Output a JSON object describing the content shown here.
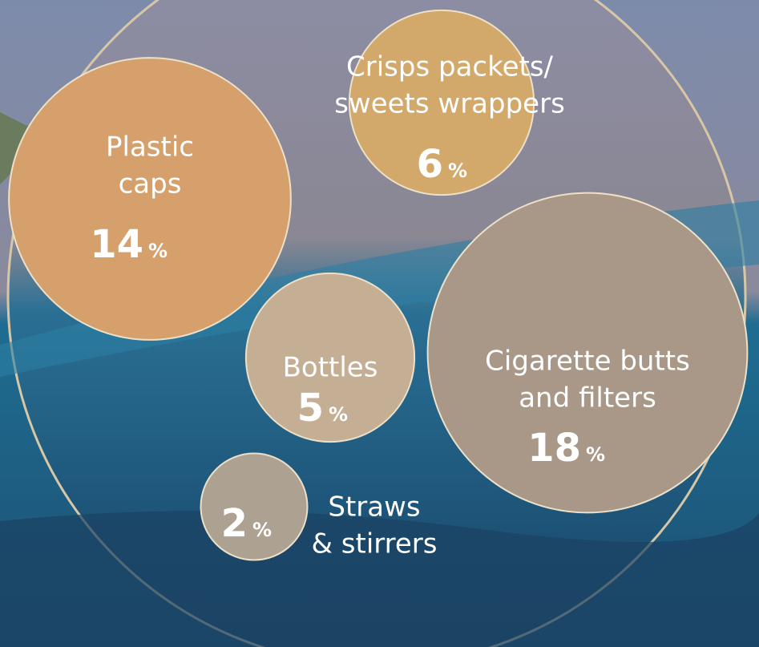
{
  "chart_data": {
    "type": "bubble",
    "categories": [
      [
        "Plastic",
        "caps"
      ],
      [
        "Crisps packets/",
        "sweets wrappers"
      ],
      [
        "Cigarette butts",
        "and filters"
      ],
      [
        "Bottles"
      ],
      [
        "Straws",
        "& stirrers"
      ]
    ],
    "values": [
      14,
      6,
      18,
      5,
      2
    ],
    "unit": "%",
    "colors": [
      "#d5a06b",
      "#d2a96a",
      "#a99888",
      "#c4ae94",
      "#ada192"
    ]
  }
}
